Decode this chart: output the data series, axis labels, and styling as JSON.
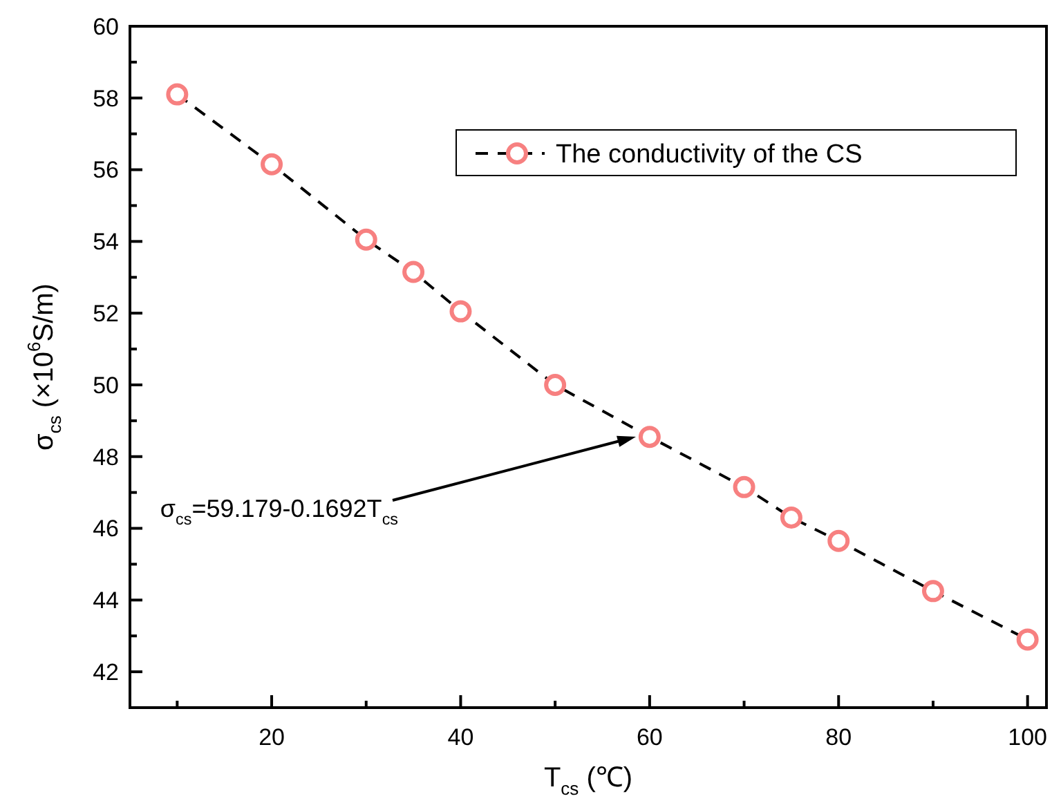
{
  "chart_data": {
    "type": "line",
    "xlabel": "T$_{cs}$ (℃)",
    "ylabel": "σ$_{cs}$ (×10$^{6}$S/m)",
    "x": [
      10,
      20,
      30,
      35,
      40,
      50,
      60,
      70,
      75,
      80,
      90,
      100
    ],
    "series": [
      {
        "name": "The conductivity of the CS",
        "color": "#f78080",
        "values": [
          58.1,
          56.15,
          54.05,
          53.15,
          52.05,
          50.0,
          48.55,
          47.15,
          46.3,
          45.65,
          44.25,
          42.9
        ]
      }
    ],
    "xlim": [
      5,
      102
    ],
    "ylim": [
      41,
      60
    ],
    "xticks": [
      {
        "value": 10,
        "label": null
      },
      20,
      {
        "value": 30,
        "label": null
      },
      40,
      {
        "value": 50,
        "label": null
      },
      60,
      {
        "value": 70,
        "label": null
      },
      80,
      {
        "value": 90,
        "label": null
      },
      100
    ],
    "yticks": [
      42,
      {
        "value": 43,
        "label": null
      },
      44,
      {
        "value": 45,
        "label": null
      },
      46,
      {
        "value": 47,
        "label": null
      },
      48,
      {
        "value": 49,
        "label": null
      },
      50,
      {
        "value": 51,
        "label": null
      },
      52,
      {
        "value": 53,
        "label": null
      },
      54,
      {
        "value": 55,
        "label": null
      },
      56,
      {
        "value": 57,
        "label": null
      },
      58,
      {
        "value": 59,
        "label": null
      },
      60
    ],
    "marker": "circle",
    "line_style": "dashed",
    "legend": "top right",
    "grid": false,
    "annotations": [
      "σ$_{cs}$=59.179-0.1692T$_{cs}$"
    ]
  }
}
